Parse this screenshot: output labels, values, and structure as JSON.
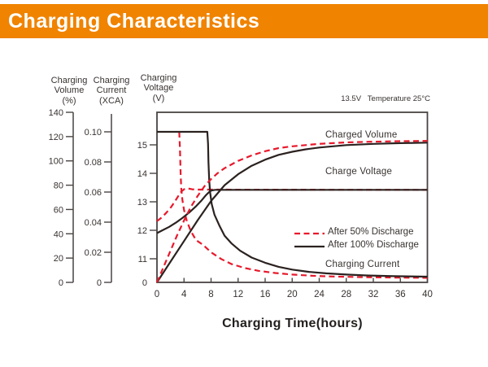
{
  "header": {
    "title": "Charging Characteristics",
    "bg_color": "#F08300",
    "text_color": "#FFFFFF"
  },
  "chart_data": {
    "type": "line",
    "xlabel": "Charging Time(hours)",
    "condition": "13.5V   Temperature 25°C",
    "xlim": [
      0,
      40
    ],
    "x_ticks": [
      "0",
      "4",
      "8",
      "12",
      "16",
      "20",
      "24",
      "28",
      "32",
      "36",
      "40"
    ],
    "grid": false,
    "legend_position": "inside-right",
    "colors": {
      "red": "#E8192C",
      "black": "#2B2220",
      "axis": "#4A4443",
      "text": "#383230"
    },
    "axes": {
      "volume": {
        "title1": "Charging",
        "title2": "Volume",
        "unit": "(%)",
        "range": [
          0,
          140
        ],
        "ticks": [
          "140",
          "120",
          "100",
          "80",
          "60",
          "40",
          "20",
          "0"
        ]
      },
      "current": {
        "title1": "Charging",
        "title2": "Current",
        "unit": "(XCA)",
        "range": [
          0,
          0.1
        ],
        "ticks": [
          "0.10",
          "0.08",
          "0.06",
          "0.04",
          "0.02",
          "0"
        ]
      },
      "voltage": {
        "title1": "Charging",
        "title2": "Voltage",
        "unit": "(V)",
        "range": [
          11,
          15
        ],
        "ticks": [
          "15",
          "14",
          "13",
          "12",
          "11",
          "0"
        ]
      }
    },
    "curve_labels": {
      "charged_volume": "Charged Volume",
      "charge_voltage": "Charge Voltage",
      "charging_current": "Charging Current"
    },
    "legend": [
      {
        "label": "After 50% Discharge",
        "color": "#E8192C",
        "dash": true
      },
      {
        "label": "After 100% Discharge",
        "color": "#2B2220",
        "dash": false
      }
    ],
    "series": [
      {
        "id": "charging-current-after-50",
        "axis": "current",
        "color": "#E8192C",
        "dash": true,
        "points": [
          [
            3.3,
            0.1
          ],
          [
            3.4,
            0.088
          ],
          [
            3.5,
            0.072
          ],
          [
            3.6,
            0.062
          ],
          [
            3.75,
            0.055
          ],
          [
            4,
            0.048
          ],
          [
            4.4,
            0.041
          ],
          [
            5,
            0.034
          ],
          [
            5.8,
            0.028
          ],
          [
            6.8,
            0.025
          ],
          [
            8,
            0.02
          ],
          [
            9.5,
            0.0155
          ],
          [
            11,
            0.0122
          ],
          [
            13,
            0.0095
          ],
          [
            15,
            0.0077
          ],
          [
            17.5,
            0.0062
          ],
          [
            20,
            0.0052
          ],
          [
            23,
            0.0044
          ],
          [
            26,
            0.0039
          ],
          [
            30,
            0.0035
          ],
          [
            35,
            0.0032
          ],
          [
            40,
            0.003
          ]
        ]
      },
      {
        "id": "charge-voltage-after-50",
        "axis": "voltage",
        "color": "#E8192C",
        "dash": true,
        "points": [
          [
            0,
            12.32
          ],
          [
            0.7,
            12.45
          ],
          [
            1.4,
            12.62
          ],
          [
            2.1,
            12.82
          ],
          [
            2.7,
            13.03
          ],
          [
            3.2,
            13.22
          ],
          [
            3.6,
            13.36
          ],
          [
            4,
            13.44
          ],
          [
            4.5,
            13.47
          ],
          [
            5.2,
            13.44
          ],
          [
            6,
            13.43
          ],
          [
            40,
            13.42
          ]
        ]
      },
      {
        "id": "charging-current-after-100",
        "axis": "current",
        "color": "#2B2220",
        "dash": false,
        "points": [
          [
            0,
            0.1
          ],
          [
            7.45,
            0.1
          ],
          [
            7.55,
            0.092
          ],
          [
            7.62,
            0.08
          ],
          [
            7.72,
            0.068
          ],
          [
            7.85,
            0.06
          ],
          [
            8.1,
            0.052
          ],
          [
            8.5,
            0.045
          ],
          [
            9.2,
            0.038
          ],
          [
            10,
            0.031
          ],
          [
            11,
            0.026
          ],
          [
            12.3,
            0.021
          ],
          [
            14,
            0.0165
          ],
          [
            16,
            0.013
          ],
          [
            18,
            0.0103
          ],
          [
            20,
            0.0085
          ],
          [
            22.5,
            0.007
          ],
          [
            25,
            0.006
          ],
          [
            28,
            0.0052
          ],
          [
            31,
            0.0046
          ],
          [
            35,
            0.0041
          ],
          [
            40,
            0.0038
          ]
        ]
      },
      {
        "id": "charge-voltage-after-100",
        "axis": "voltage",
        "color": "#2B2220",
        "dash": false,
        "points": [
          [
            0,
            11.9
          ],
          [
            0.8,
            12
          ],
          [
            1.8,
            12.12
          ],
          [
            2.8,
            12.27
          ],
          [
            3.8,
            12.44
          ],
          [
            4.8,
            12.63
          ],
          [
            5.8,
            12.85
          ],
          [
            6.6,
            13.05
          ],
          [
            7.2,
            13.22
          ],
          [
            7.7,
            13.34
          ],
          [
            8.1,
            13.4
          ],
          [
            8.6,
            13.42
          ],
          [
            40,
            13.42
          ]
        ]
      },
      {
        "id": "charged-volume-after-100",
        "axis": "volume",
        "color": "#2B2220",
        "dash": false,
        "points": [
          [
            0,
            0
          ],
          [
            2,
            17
          ],
          [
            4,
            34
          ],
          [
            6,
            51
          ],
          [
            8,
            67
          ],
          [
            10,
            80
          ],
          [
            12,
            89
          ],
          [
            14,
            96
          ],
          [
            16,
            101
          ],
          [
            18,
            105
          ],
          [
            20,
            107.5
          ],
          [
            22,
            109.5
          ],
          [
            24,
            111
          ],
          [
            28,
            113
          ],
          [
            32,
            114
          ],
          [
            36,
            114.6
          ],
          [
            40,
            115
          ]
        ]
      },
      {
        "id": "charged-volume-after-50",
        "axis": "volume",
        "color": "#E8192C",
        "dash": true,
        "points": [
          [
            0,
            0
          ],
          [
            1,
            13
          ],
          [
            2,
            26
          ],
          [
            3,
            39
          ],
          [
            4,
            51
          ],
          [
            5,
            62
          ],
          [
            6,
            71
          ],
          [
            7,
            79
          ],
          [
            8,
            85
          ],
          [
            9,
            90
          ],
          [
            10,
            94
          ],
          [
            12,
            100
          ],
          [
            14,
            104.5
          ],
          [
            16,
            108
          ],
          [
            18,
            110.5
          ],
          [
            20,
            112
          ],
          [
            24,
            114
          ],
          [
            28,
            115.2
          ],
          [
            32,
            115.8
          ],
          [
            36,
            116.2
          ],
          [
            40,
            116.5
          ]
        ]
      }
    ]
  }
}
